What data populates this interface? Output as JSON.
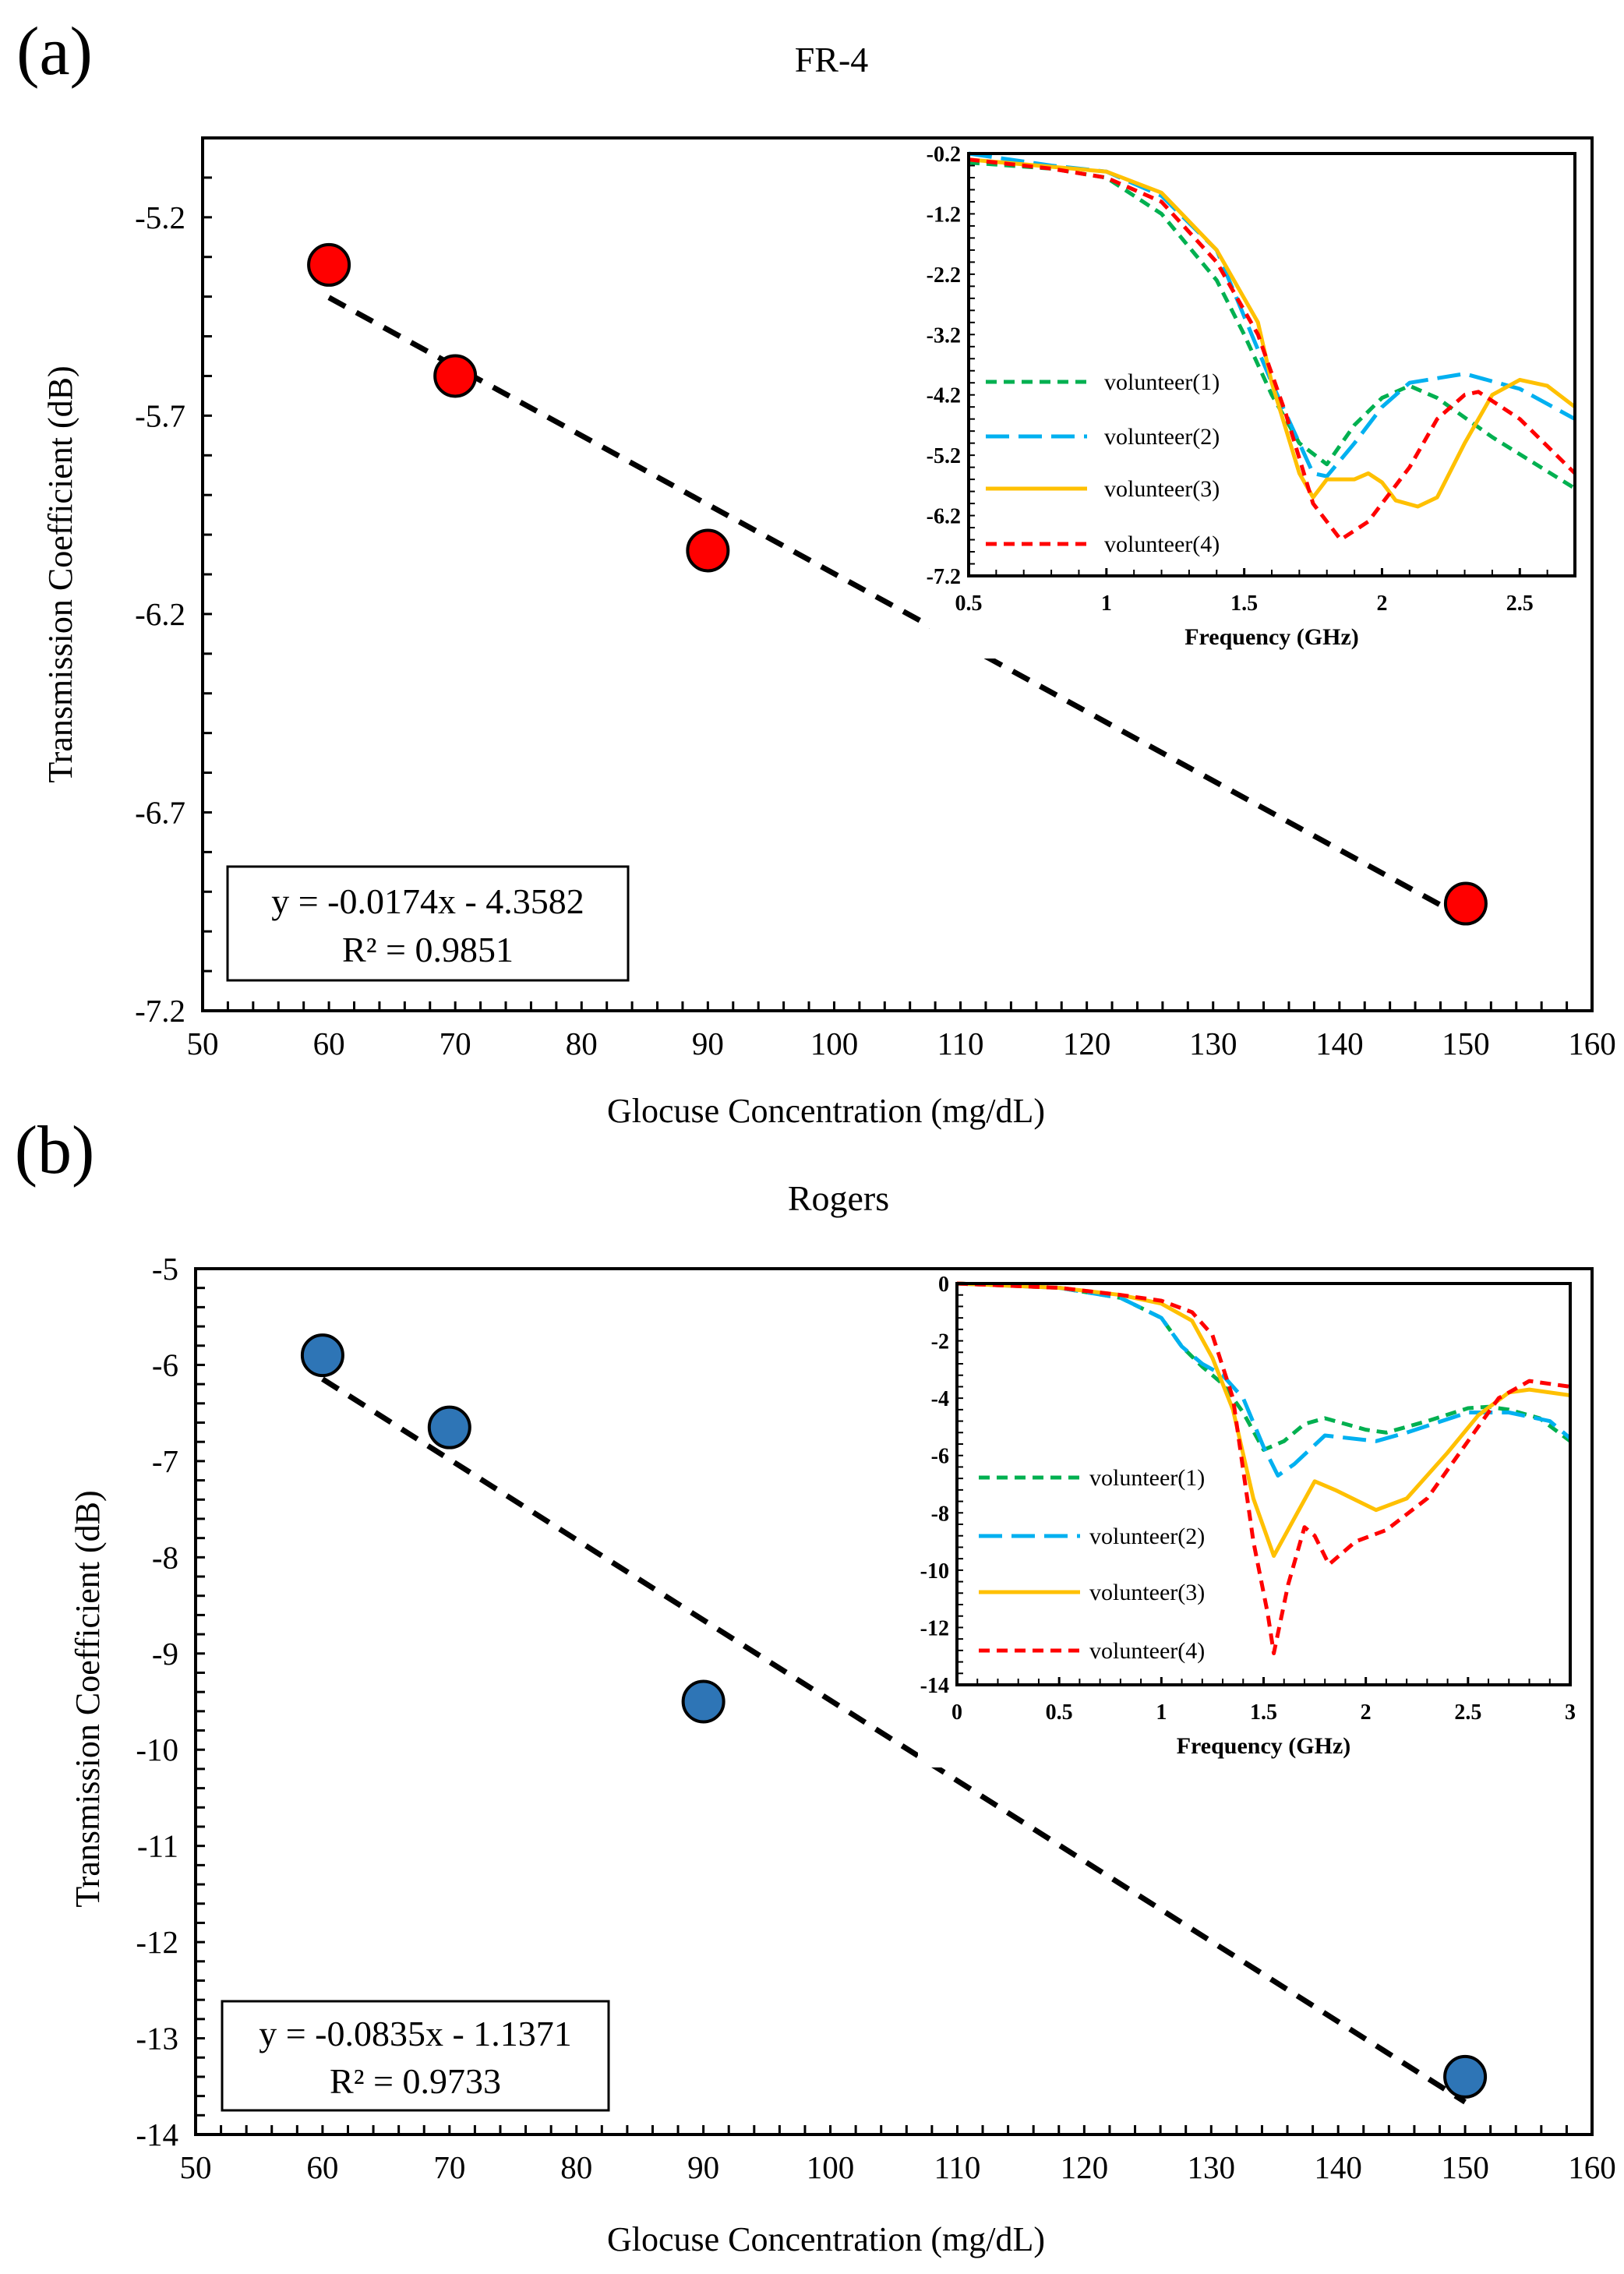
{
  "chart_data": [
    {
      "panel_label": "(a)",
      "type": "scatter",
      "title": "FR-4",
      "xlabel": "Glocuse Concentration (mg/dL)",
      "ylabel": "Transmission Coefficient (dB)",
      "xlim": [
        50,
        160
      ],
      "ylim": [
        -7.2,
        -5.0
      ],
      "xticks": [
        50,
        60,
        70,
        80,
        90,
        100,
        110,
        120,
        130,
        140,
        150,
        160
      ],
      "yticks": [
        -7.2,
        -6.7,
        -6.2,
        -5.7,
        -5.2
      ],
      "marker_color": "#ff0000",
      "points": {
        "x": [
          60,
          70,
          90,
          150
        ],
        "y": [
          -5.32,
          -5.6,
          -6.04,
          -6.93
        ]
      },
      "trendline": {
        "slope": -0.0174,
        "intercept": -4.3582,
        "equation": "y = -0.0174x - 4.3582",
        "r2": "R² = 0.9851"
      },
      "inset": {
        "type": "line",
        "xlabel": "Frequency (GHz)",
        "xlim": [
          0.5,
          2.7
        ],
        "ylim": [
          -7.2,
          -0.2
        ],
        "xticks": [
          0.5,
          1,
          1.5,
          2,
          2.5
        ],
        "yticks": [
          -0.2,
          -1.2,
          -2.2,
          -3.2,
          -4.2,
          -5.2,
          -6.2,
          -7.2
        ],
        "series": [
          {
            "name": "volunteer(1)",
            "color": "#00b050",
            "dash": "short",
            "x": [
              0.5,
              0.8,
              1.0,
              1.2,
              1.4,
              1.5,
              1.6,
              1.7,
              1.8,
              1.9,
              2.0,
              2.1,
              2.2,
              2.4,
              2.7
            ],
            "y": [
              -0.35,
              -0.45,
              -0.6,
              -1.2,
              -2.3,
              -3.2,
              -4.2,
              -5.0,
              -5.35,
              -4.7,
              -4.25,
              -4.05,
              -4.25,
              -4.9,
              -5.75
            ]
          },
          {
            "name": "volunteer(2)",
            "color": "#00b0f0",
            "dash": "long",
            "x": [
              0.5,
              0.8,
              1.0,
              1.2,
              1.4,
              1.5,
              1.6,
              1.7,
              1.75,
              1.8,
              1.9,
              2.0,
              2.1,
              2.3,
              2.5,
              2.7
            ],
            "y": [
              -0.2,
              -0.4,
              -0.5,
              -0.9,
              -1.8,
              -2.9,
              -4.0,
              -5.0,
              -5.5,
              -5.55,
              -5.0,
              -4.4,
              -4.0,
              -3.85,
              -4.1,
              -4.6
            ]
          },
          {
            "name": "volunteer(3)",
            "color": "#ffc000",
            "dash": "solid",
            "x": [
              0.5,
              1.0,
              1.2,
              1.4,
              1.55,
              1.6,
              1.7,
              1.75,
              1.8,
              1.9,
              1.95,
              2.0,
              2.05,
              2.13,
              2.2,
              2.3,
              2.4,
              2.5,
              2.6,
              2.7
            ],
            "y": [
              -0.3,
              -0.5,
              -0.85,
              -1.8,
              -3.0,
              -4.0,
              -5.5,
              -5.9,
              -5.6,
              -5.6,
              -5.5,
              -5.65,
              -5.95,
              -6.05,
              -5.9,
              -5.0,
              -4.2,
              -3.95,
              -4.05,
              -4.4
            ]
          },
          {
            "name": "volunteer(4)",
            "color": "#ff0000",
            "dash": "short",
            "x": [
              0.5,
              0.8,
              1.0,
              1.2,
              1.4,
              1.55,
              1.65,
              1.75,
              1.85,
              1.95,
              2.1,
              2.2,
              2.3,
              2.35,
              2.5,
              2.7
            ],
            "y": [
              -0.3,
              -0.45,
              -0.6,
              -1.0,
              -2.0,
              -3.2,
              -4.5,
              -6.0,
              -6.6,
              -6.3,
              -5.4,
              -4.6,
              -4.2,
              -4.15,
              -4.6,
              -5.5
            ]
          }
        ]
      }
    },
    {
      "panel_label": "(b)",
      "type": "scatter",
      "title": "Rogers",
      "xlabel": "Glocuse Concentration (mg/dL)",
      "ylabel": "Transmission Coefficient (dB)",
      "xlim": [
        50,
        160
      ],
      "ylim": [
        -14,
        -5
      ],
      "xticks": [
        50,
        60,
        70,
        80,
        90,
        100,
        110,
        120,
        130,
        140,
        150,
        160
      ],
      "yticks": [
        -14,
        -13,
        -12,
        -11,
        -10,
        -9,
        -8,
        -7,
        -6,
        -5
      ],
      "marker_color": "#2e75b6",
      "points": {
        "x": [
          60,
          70,
          90,
          150
        ],
        "y": [
          -5.9,
          -6.65,
          -9.5,
          -13.4
        ]
      },
      "trendline": {
        "slope": -0.0835,
        "intercept": -1.1371,
        "equation": "y = -0.0835x - 1.1371",
        "r2": "R² = 0.9733"
      },
      "inset": {
        "type": "line",
        "xlabel": "Frequency (GHz)",
        "xlim": [
          0,
          3
        ],
        "ylim": [
          -14,
          0
        ],
        "xticks": [
          0,
          0.5,
          1,
          1.5,
          2,
          2.5,
          3
        ],
        "yticks": [
          0,
          -2,
          -4,
          -6,
          -8,
          -10,
          -12,
          -14
        ],
        "series": [
          {
            "name": "volunteer(1)",
            "color": "#00b050",
            "dash": "short",
            "x": [
              0,
              0.5,
              0.8,
              1.0,
              1.1,
              1.2,
              1.3,
              1.4,
              1.5,
              1.6,
              1.7,
              1.8,
              2.0,
              2.1,
              2.3,
              2.5,
              2.6,
              2.7,
              2.85,
              3.0
            ],
            "y": [
              0,
              -0.15,
              -0.5,
              -1.2,
              -2.2,
              -2.9,
              -3.5,
              -4.5,
              -5.8,
              -5.5,
              -4.9,
              -4.7,
              -5.1,
              -5.2,
              -4.8,
              -4.35,
              -4.3,
              -4.4,
              -4.7,
              -5.5
            ]
          },
          {
            "name": "volunteer(2)",
            "color": "#00b0f0",
            "dash": "long",
            "x": [
              0,
              0.5,
              0.8,
              1.0,
              1.1,
              1.2,
              1.3,
              1.4,
              1.5,
              1.57,
              1.65,
              1.8,
              2.05,
              2.2,
              2.5,
              2.7,
              2.9,
              3.0
            ],
            "y": [
              0,
              -0.15,
              -0.5,
              -1.2,
              -2.2,
              -2.8,
              -3.2,
              -4.0,
              -5.7,
              -6.7,
              -6.3,
              -5.3,
              -5.5,
              -5.2,
              -4.5,
              -4.5,
              -4.8,
              -5.4
            ]
          },
          {
            "name": "volunteer(3)",
            "color": "#ffc000",
            "dash": "solid",
            "x": [
              0,
              0.5,
              0.8,
              1.0,
              1.15,
              1.25,
              1.35,
              1.45,
              1.55,
              1.65,
              1.75,
              1.85,
              2.05,
              2.2,
              2.4,
              2.55,
              2.7,
              2.8,
              3.0
            ],
            "y": [
              0,
              -0.15,
              -0.4,
              -0.7,
              -1.3,
              -2.6,
              -4.4,
              -7.5,
              -9.5,
              -8.2,
              -6.9,
              -7.2,
              -7.9,
              -7.5,
              -5.9,
              -4.6,
              -3.8,
              -3.7,
              -3.9
            ]
          },
          {
            "name": "volunteer(4)",
            "color": "#ff0000",
            "dash": "short",
            "x": [
              0,
              0.5,
              0.8,
              1.0,
              1.15,
              1.25,
              1.35,
              1.45,
              1.52,
              1.55,
              1.62,
              1.7,
              1.75,
              1.82,
              1.95,
              2.1,
              2.3,
              2.5,
              2.65,
              2.8,
              3.0
            ],
            "y": [
              0,
              -0.15,
              -0.4,
              -0.6,
              -1.0,
              -1.8,
              -4.0,
              -9.0,
              -11.5,
              -12.9,
              -10.5,
              -8.5,
              -8.8,
              -9.8,
              -9.0,
              -8.6,
              -7.5,
              -5.5,
              -4.0,
              -3.4,
              -3.6
            ]
          }
        ]
      }
    }
  ]
}
